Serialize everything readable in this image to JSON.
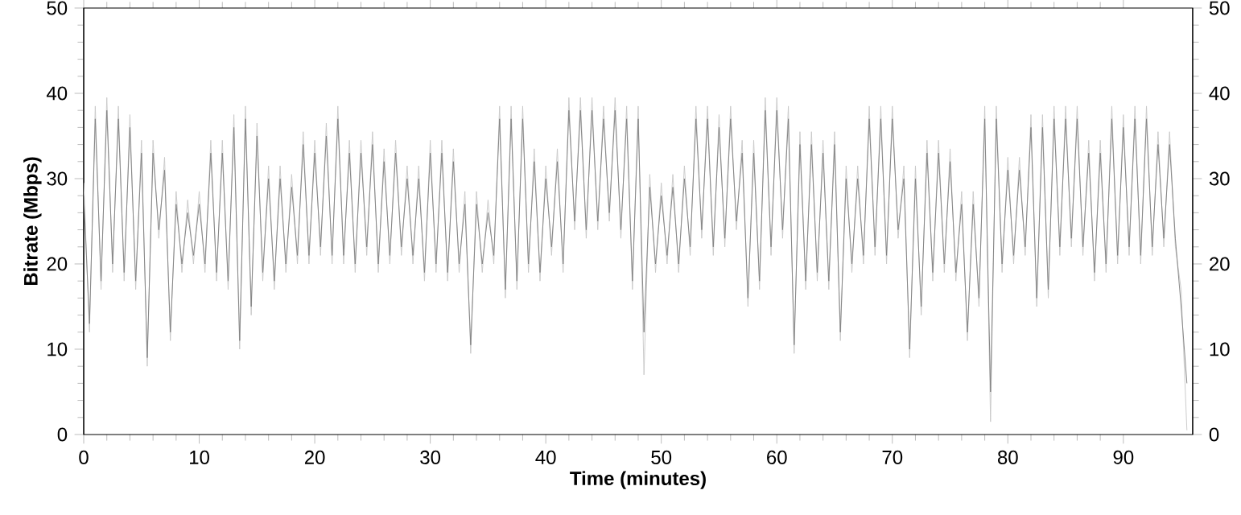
{
  "chart_data": {
    "type": "line",
    "xlabel": "Time (minutes)",
    "ylabel": "Bitrate (Mbps)",
    "xlim": [
      0,
      96
    ],
    "xticks": [
      0,
      10,
      20,
      30,
      40,
      50,
      60,
      70,
      80,
      90
    ],
    "ylim": [
      0,
      50
    ],
    "yticks": [
      0,
      10,
      20,
      30,
      40,
      50
    ],
    "y2lim": [
      0,
      50
    ],
    "y2ticks": [
      0,
      10,
      20,
      30,
      40,
      50
    ],
    "grid": false,
    "marker": "none",
    "line_style": "solid",
    "x": [
      0,
      0.5,
      1,
      1.5,
      2,
      2.5,
      3,
      3.5,
      4,
      4.5,
      5,
      5.5,
      6,
      6.5,
      7,
      7.5,
      8,
      8.5,
      9,
      9.5,
      10,
      10.5,
      11,
      11.5,
      12,
      12.5,
      13,
      13.5,
      14,
      14.5,
      15,
      15.5,
      16,
      16.5,
      17,
      17.5,
      18,
      18.5,
      19,
      19.5,
      20,
      20.5,
      21,
      21.5,
      22,
      22.5,
      23,
      23.5,
      24,
      24.5,
      25,
      25.5,
      26,
      26.5,
      27,
      27.5,
      28,
      28.5,
      29,
      29.5,
      30,
      30.5,
      31,
      31.5,
      32,
      32.5,
      33,
      33.5,
      34,
      34.5,
      35,
      35.5,
      36,
      36.5,
      37,
      37.5,
      38,
      38.5,
      39,
      39.5,
      40,
      40.5,
      41,
      41.5,
      42,
      42.5,
      43,
      43.5,
      44,
      44.5,
      45,
      45.5,
      46,
      46.5,
      47,
      47.5,
      48,
      48.5,
      49,
      49.5,
      50,
      50.5,
      51,
      51.5,
      52,
      52.5,
      53,
      53.5,
      54,
      54.5,
      55,
      55.5,
      56,
      56.5,
      57,
      57.5,
      58,
      58.5,
      59,
      59.5,
      60,
      60.5,
      61,
      61.5,
      62,
      62.5,
      63,
      63.5,
      64,
      64.5,
      65,
      65.5,
      66,
      66.5,
      67,
      67.5,
      68,
      68.5,
      69,
      69.5,
      70,
      70.5,
      71,
      71.5,
      72,
      72.5,
      73,
      73.5,
      74,
      74.5,
      75,
      75.5,
      76,
      76.5,
      77,
      77.5,
      78,
      78.5,
      79,
      79.5,
      80,
      80.5,
      81,
      81.5,
      82,
      82.5,
      83,
      83.5,
      84,
      84.5,
      85,
      85.5,
      86,
      86.5,
      87,
      87.5,
      88,
      88.5,
      89,
      89.5,
      90,
      90.5,
      91,
      91.5,
      92,
      92.5,
      93,
      93.5,
      94,
      94.5,
      95,
      95.5
    ],
    "series": [
      {
        "color": "#c8c8c8",
        "values": [
          29.5,
          12,
          38.5,
          17,
          39.5,
          19,
          38.5,
          18,
          37.5,
          17,
          34.5,
          8,
          34.5,
          23,
          32.5,
          11,
          28.5,
          19,
          27.5,
          20,
          28.5,
          19,
          34.5,
          18,
          34.5,
          17,
          37.5,
          10,
          38.5,
          14,
          36.5,
          18,
          31.5,
          17,
          31.5,
          19,
          30.5,
          20,
          35.5,
          20,
          34.5,
          21,
          36.5,
          20,
          38.5,
          20,
          34.5,
          19,
          34.5,
          21,
          35.5,
          19,
          33.5,
          20,
          34.5,
          21,
          31.5,
          20,
          31.5,
          18,
          34.5,
          19,
          34.5,
          18,
          33.5,
          19,
          28.5,
          9.5,
          28.5,
          19,
          27.5,
          20,
          38.5,
          16,
          38.5,
          17,
          38.5,
          19,
          33.5,
          18,
          31.5,
          21,
          33.5,
          19,
          39.5,
          24,
          39.5,
          23,
          39.5,
          24,
          38.5,
          25,
          39.5,
          23,
          38.5,
          17,
          38.5,
          7,
          30.5,
          19,
          29.5,
          20,
          30.5,
          19,
          31.5,
          21,
          38.5,
          23,
          38.5,
          21,
          37.5,
          22,
          38.5,
          24,
          34.5,
          15,
          34.5,
          17,
          39.5,
          21,
          39.5,
          23,
          38.5,
          9.5,
          35.5,
          17,
          35.5,
          18,
          34.5,
          17,
          35.5,
          11,
          31.5,
          19,
          31.5,
          20,
          38.5,
          21,
          38.5,
          20,
          38.5,
          23,
          31.5,
          9,
          31.5,
          14,
          34.5,
          18,
          34.5,
          19,
          33.5,
          18,
          28.5,
          11,
          28.5,
          15,
          38.5,
          1.5,
          38.5,
          19,
          32.5,
          20,
          32.5,
          21,
          37.5,
          15,
          37.5,
          16,
          38.5,
          21,
          38.5,
          22,
          38.5,
          21,
          34.5,
          18,
          34.5,
          19,
          38.5,
          20,
          37.5,
          21,
          38.5,
          20,
          38.5,
          21,
          35.5,
          22,
          35.5,
          22,
          17,
          0.5
        ]
      },
      {
        "color": "#808080",
        "values": [
          28,
          13,
          37,
          18,
          38,
          20,
          37,
          19,
          36,
          18,
          33,
          9,
          33,
          24,
          31,
          12,
          27,
          20,
          26,
          21,
          27,
          20,
          33,
          19,
          33,
          18,
          36,
          11,
          37,
          15,
          35,
          19,
          30,
          18,
          30,
          20,
          29,
          21,
          34,
          21,
          33,
          22,
          35,
          21,
          37,
          21,
          33,
          20,
          33,
          22,
          34,
          20,
          32,
          21,
          33,
          22,
          30,
          21,
          30,
          19,
          33,
          20,
          33,
          19,
          32,
          20,
          27,
          10.5,
          27,
          20,
          26,
          21,
          37,
          17,
          37,
          18,
          37,
          20,
          32,
          19,
          30,
          22,
          32,
          20,
          38,
          25,
          38,
          24,
          38,
          25,
          37,
          26,
          38,
          24,
          37,
          18,
          37,
          12,
          29,
          20,
          28,
          21,
          29,
          20,
          30,
          22,
          37,
          24,
          37,
          22,
          36,
          23,
          37,
          25,
          33,
          16,
          33,
          18,
          38,
          22,
          38,
          24,
          37,
          10.5,
          34,
          18,
          34,
          19,
          33,
          18,
          34,
          12,
          30,
          20,
          30,
          21,
          37,
          22,
          37,
          21,
          37,
          24,
          30,
          10,
          30,
          15,
          33,
          19,
          33,
          20,
          32,
          19,
          27,
          12,
          27,
          16,
          37,
          5,
          37,
          20,
          31,
          21,
          31,
          22,
          36,
          16,
          36,
          17,
          37,
          22,
          37,
          23,
          37,
          22,
          33,
          19,
          33,
          20,
          37,
          21,
          36,
          22,
          37,
          21,
          37,
          22,
          34,
          23,
          34,
          23,
          15,
          6
        ]
      }
    ]
  }
}
